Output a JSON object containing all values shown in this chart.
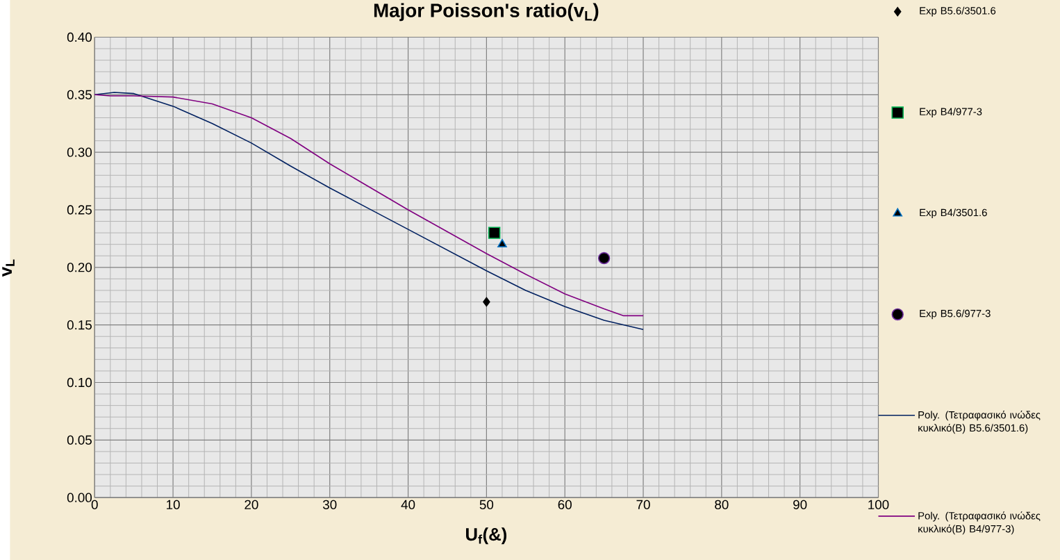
{
  "chart_data": {
    "type": "scatter",
    "title": "Major Poisson's ratio(v$_{L}$)",
    "xlabel": "U$_{f}$(&)",
    "ylabel": "v$_{L}$",
    "xlim": [
      0,
      100
    ],
    "ylim": [
      0,
      0.4
    ],
    "xticks": [
      0,
      10,
      20,
      30,
      40,
      50,
      60,
      70,
      80,
      90,
      100
    ],
    "yticks": [
      {
        "value": 0,
        "label": "0.00"
      },
      {
        "value": 0.05,
        "label": "0.05"
      },
      {
        "value": 0.1,
        "label": "0.10"
      },
      {
        "value": 0.15,
        "label": "0.15"
      },
      {
        "value": 0.2,
        "label": "0.20"
      },
      {
        "value": 0.25,
        "label": "0.25"
      },
      {
        "value": 0.3,
        "label": "0.30"
      },
      {
        "value": 0.35,
        "label": "0.35"
      },
      {
        "value": 0.4,
        "label": "0.40"
      }
    ],
    "grid": true,
    "legend": "right",
    "series": [
      {
        "name": "Exp B5.6/3501.6",
        "marker": "diamond",
        "color": "#000000",
        "x": [
          50
        ],
        "values": [
          0.17
        ]
      },
      {
        "name": "Exp B4/977-3",
        "marker": "square",
        "color": "#00b050",
        "x": [
          51
        ],
        "values": [
          0.23
        ]
      },
      {
        "name": "Exp B4/3501.6",
        "marker": "triangle",
        "color": "#0070c0",
        "x": [
          52
        ],
        "values": [
          0.22
        ]
      },
      {
        "name": "Exp B5.6/977-3",
        "marker": "circle",
        "color": "#7030a0",
        "x": [
          65
        ],
        "values": [
          0.208
        ]
      },
      {
        "name": "Poly. (Τετραφασικό ινώδες κυκλικό(Β) B5.6/3501.6)",
        "type": "line",
        "marker": "none",
        "line_style": "solid",
        "color": "#002060",
        "x": [
          0,
          2.5,
          5,
          10,
          15,
          20,
          25,
          30,
          35,
          40,
          45,
          50,
          55,
          60,
          65,
          70
        ],
        "values": [
          0.35,
          0.352,
          0.351,
          0.34,
          0.325,
          0.308,
          0.288,
          0.269,
          0.251,
          0.233,
          0.215,
          0.197,
          0.18,
          0.166,
          0.154,
          0.146
        ]
      },
      {
        "name": "Poly. (Τετραφασικό ινώδες κυκλικό(Β) B4/977-3)",
        "type": "line",
        "marker": "none",
        "line_style": "solid",
        "color": "#800080",
        "x": [
          0,
          2,
          5,
          10,
          15,
          20,
          25,
          30,
          35,
          40,
          45,
          50,
          55,
          60,
          65,
          67.5,
          70
        ],
        "values": [
          0.35,
          0.349,
          0.349,
          0.348,
          0.342,
          0.33,
          0.312,
          0.29,
          0.27,
          0.25,
          0.231,
          0.212,
          0.194,
          0.177,
          0.164,
          0.158,
          0.158
        ]
      }
    ]
  }
}
